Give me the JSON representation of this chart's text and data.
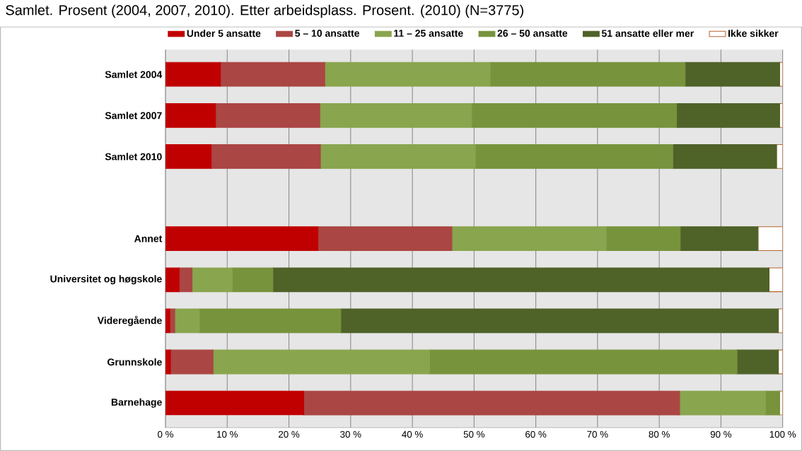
{
  "chart_data": {
    "type": "bar",
    "orientation": "horizontal",
    "stacked": true,
    "title": "Samlet. Prosent (2004, 2007, 2010). Etter arbeidsplass. Prosent. (2010) (N=3775)",
    "categories": [
      "Samlet 2004",
      "Samlet 2007",
      "Samlet 2010",
      null,
      "Annet",
      "Universitet og høgskole",
      "Videregående",
      "Grunnskole",
      "Barnehage"
    ],
    "series": [
      {
        "name": "Under 5 ansatte",
        "color": "#c00000",
        "values": [
          8.9,
          8.1,
          7.4,
          null,
          24.7,
          2.2,
          0.7,
          0.8,
          22.4
        ]
      },
      {
        "name": "5 – 10 ansatte",
        "color": "#aa4643",
        "values": [
          16.9,
          16.9,
          17.7,
          null,
          21.7,
          2.1,
          0.8,
          6.9,
          60.9
        ]
      },
      {
        "name": "11 – 25 ansatte",
        "color": "#89a54e",
        "values": [
          26.8,
          24.6,
          25.1,
          null,
          25.0,
          6.5,
          4.0,
          35.1,
          13.9
        ]
      },
      {
        "name": "26 – 50 ansatte",
        "color": "#77933c",
        "values": [
          31.6,
          33.2,
          32.0,
          null,
          12.0,
          6.6,
          22.9,
          49.8,
          2.3
        ]
      },
      {
        "name": "51 ansatte eller mer",
        "color": "#4f6228",
        "values": [
          15.3,
          16.7,
          16.8,
          null,
          12.6,
          80.4,
          70.9,
          6.7,
          0
        ]
      },
      {
        "name": "Ikke sikker",
        "color": "#ffffff",
        "values": [
          0.5,
          0.5,
          1.0,
          null,
          4.0,
          2.2,
          0.7,
          0.7,
          0.5
        ]
      }
    ],
    "xlim": [
      0,
      100
    ],
    "xticks": [
      {
        "value": 0,
        "label": "0 %"
      },
      {
        "value": 10,
        "label": "10 %"
      },
      {
        "value": 20,
        "label": "20 %"
      },
      {
        "value": 30,
        "label": "30 %"
      },
      {
        "value": 40,
        "label": "40 %"
      },
      {
        "value": 50,
        "label": "50 %"
      },
      {
        "value": 60,
        "label": "60 %"
      },
      {
        "value": 70,
        "label": "70 %"
      },
      {
        "value": 80,
        "label": "80 %"
      },
      {
        "value": 90,
        "label": "90 %"
      },
      {
        "value": 100,
        "label": "100 %"
      }
    ],
    "grid": "x",
    "legend": "top"
  }
}
